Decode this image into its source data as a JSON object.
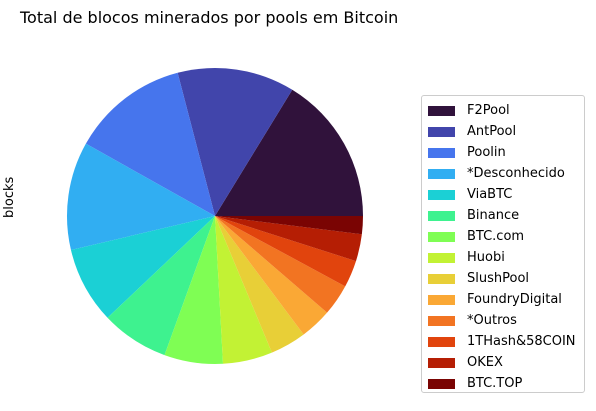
{
  "chart_data": {
    "type": "pie",
    "title": "Total de blocos minerados por pools em Bitcoin",
    "ylabel": "blocks",
    "legend_position": "right",
    "slices": [
      {
        "label": "F2Pool",
        "value": 16.5,
        "color": "#30123b"
      },
      {
        "label": "AntPool",
        "value": 13.0,
        "color": "#4145ab"
      },
      {
        "label": "Poolin",
        "value": 13.0,
        "color": "#4675ed"
      },
      {
        "label": "*Desconhecido",
        "value": 12.0,
        "color": "#31aef2"
      },
      {
        "label": "ViaBTC",
        "value": 8.5,
        "color": "#1bd0d5"
      },
      {
        "label": "Binance",
        "value": 7.5,
        "color": "#3ef28f"
      },
      {
        "label": "BTC.com",
        "value": 6.5,
        "color": "#7ffe54"
      },
      {
        "label": "Huobi",
        "value": 5.5,
        "color": "#c2f234"
      },
      {
        "label": "SlushPool",
        "value": 4.0,
        "color": "#e8cf37"
      },
      {
        "label": "FoundryDigital",
        "value": 3.5,
        "color": "#faa835"
      },
      {
        "label": "*Outros",
        "value": 3.5,
        "color": "#f27422"
      },
      {
        "label": "1THash&58COIN",
        "value": 3.0,
        "color": "#e1440d"
      },
      {
        "label": "OKEX",
        "value": 3.0,
        "color": "#b51e04"
      },
      {
        "label": "BTC.TOP",
        "value": 2.0,
        "color": "#7a0403"
      }
    ]
  }
}
